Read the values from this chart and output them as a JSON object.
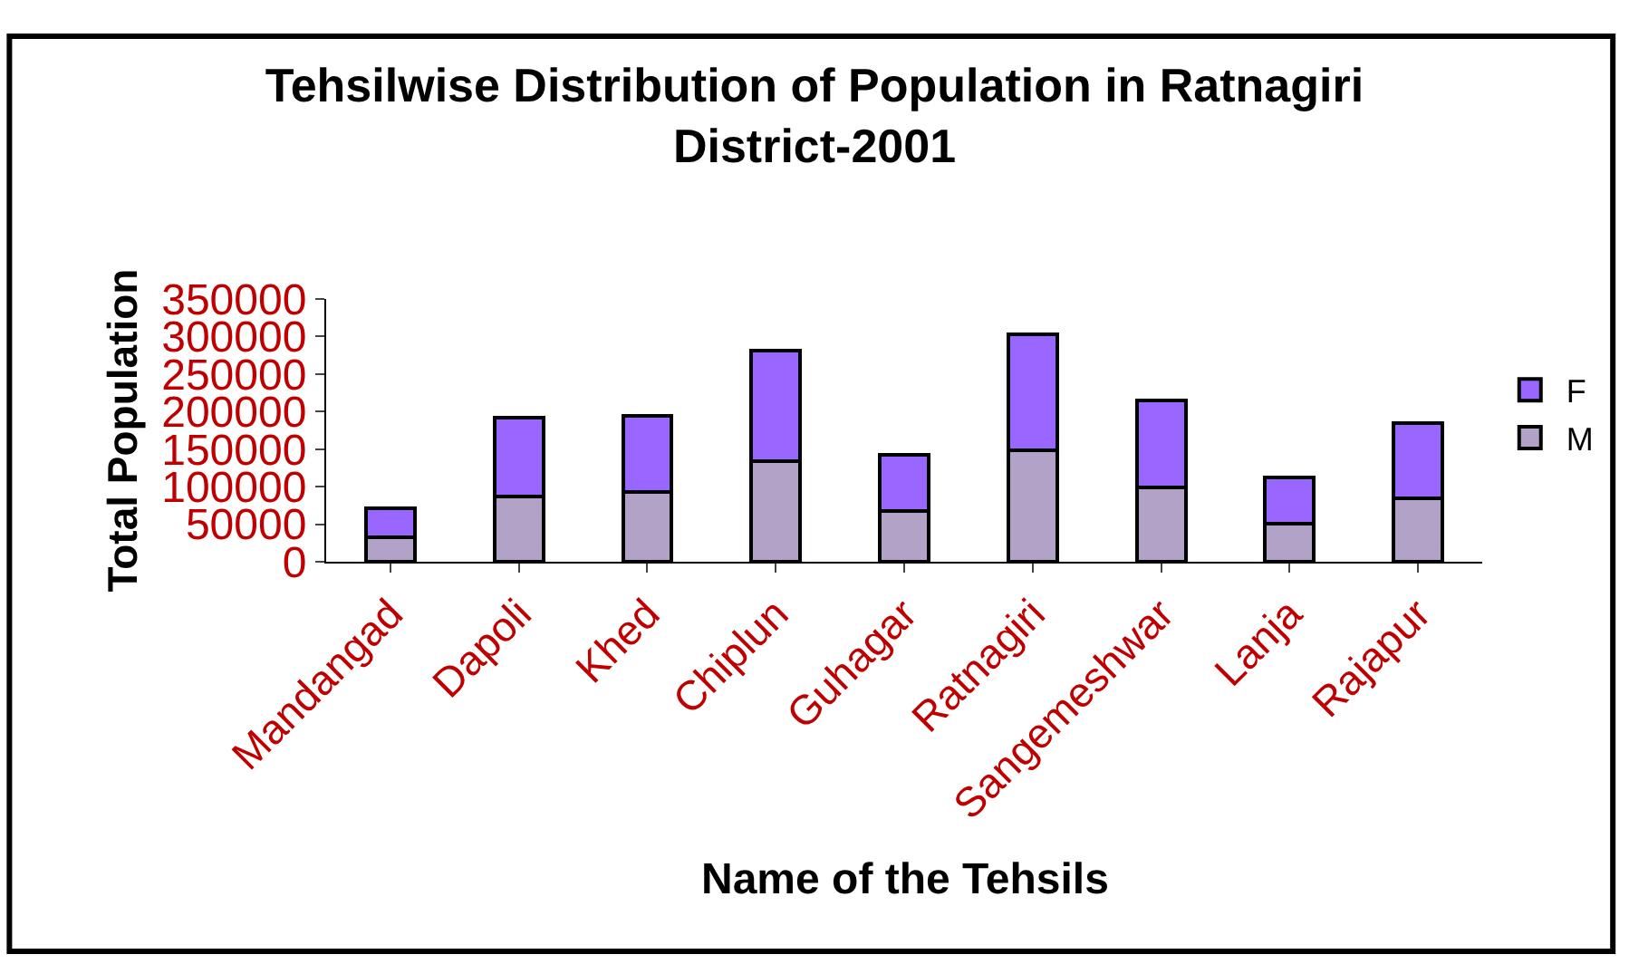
{
  "chart_data": {
    "type": "bar",
    "title": "Tehsilwise Distribution of Population in Ratnagiri District-2001",
    "xlabel": "Name of the Tehsils",
    "ylabel": "Total Population",
    "categories": [
      "Mandangad",
      "Dapoli",
      "Khed",
      "Chiplun",
      "Guhagar",
      "Ratnagiri",
      "Sangemeshwar",
      "Lanja",
      "Rajapur"
    ],
    "stacked": true,
    "legend": "right",
    "ylim": [
      0,
      350000
    ],
    "yticks": [
      0,
      50000,
      100000,
      150000,
      200000,
      250000,
      300000,
      350000
    ],
    "series": [
      {
        "name": "M",
        "color": "#b3a2c7",
        "values": [
          33000,
          87000,
          93000,
          134000,
          68000,
          148000,
          99000,
          51000,
          85000
        ]
      },
      {
        "name": "F",
        "color": "#9966ff",
        "values": [
          38000,
          105000,
          101000,
          147000,
          74000,
          155000,
          116000,
          61000,
          100000
        ]
      }
    ]
  }
}
